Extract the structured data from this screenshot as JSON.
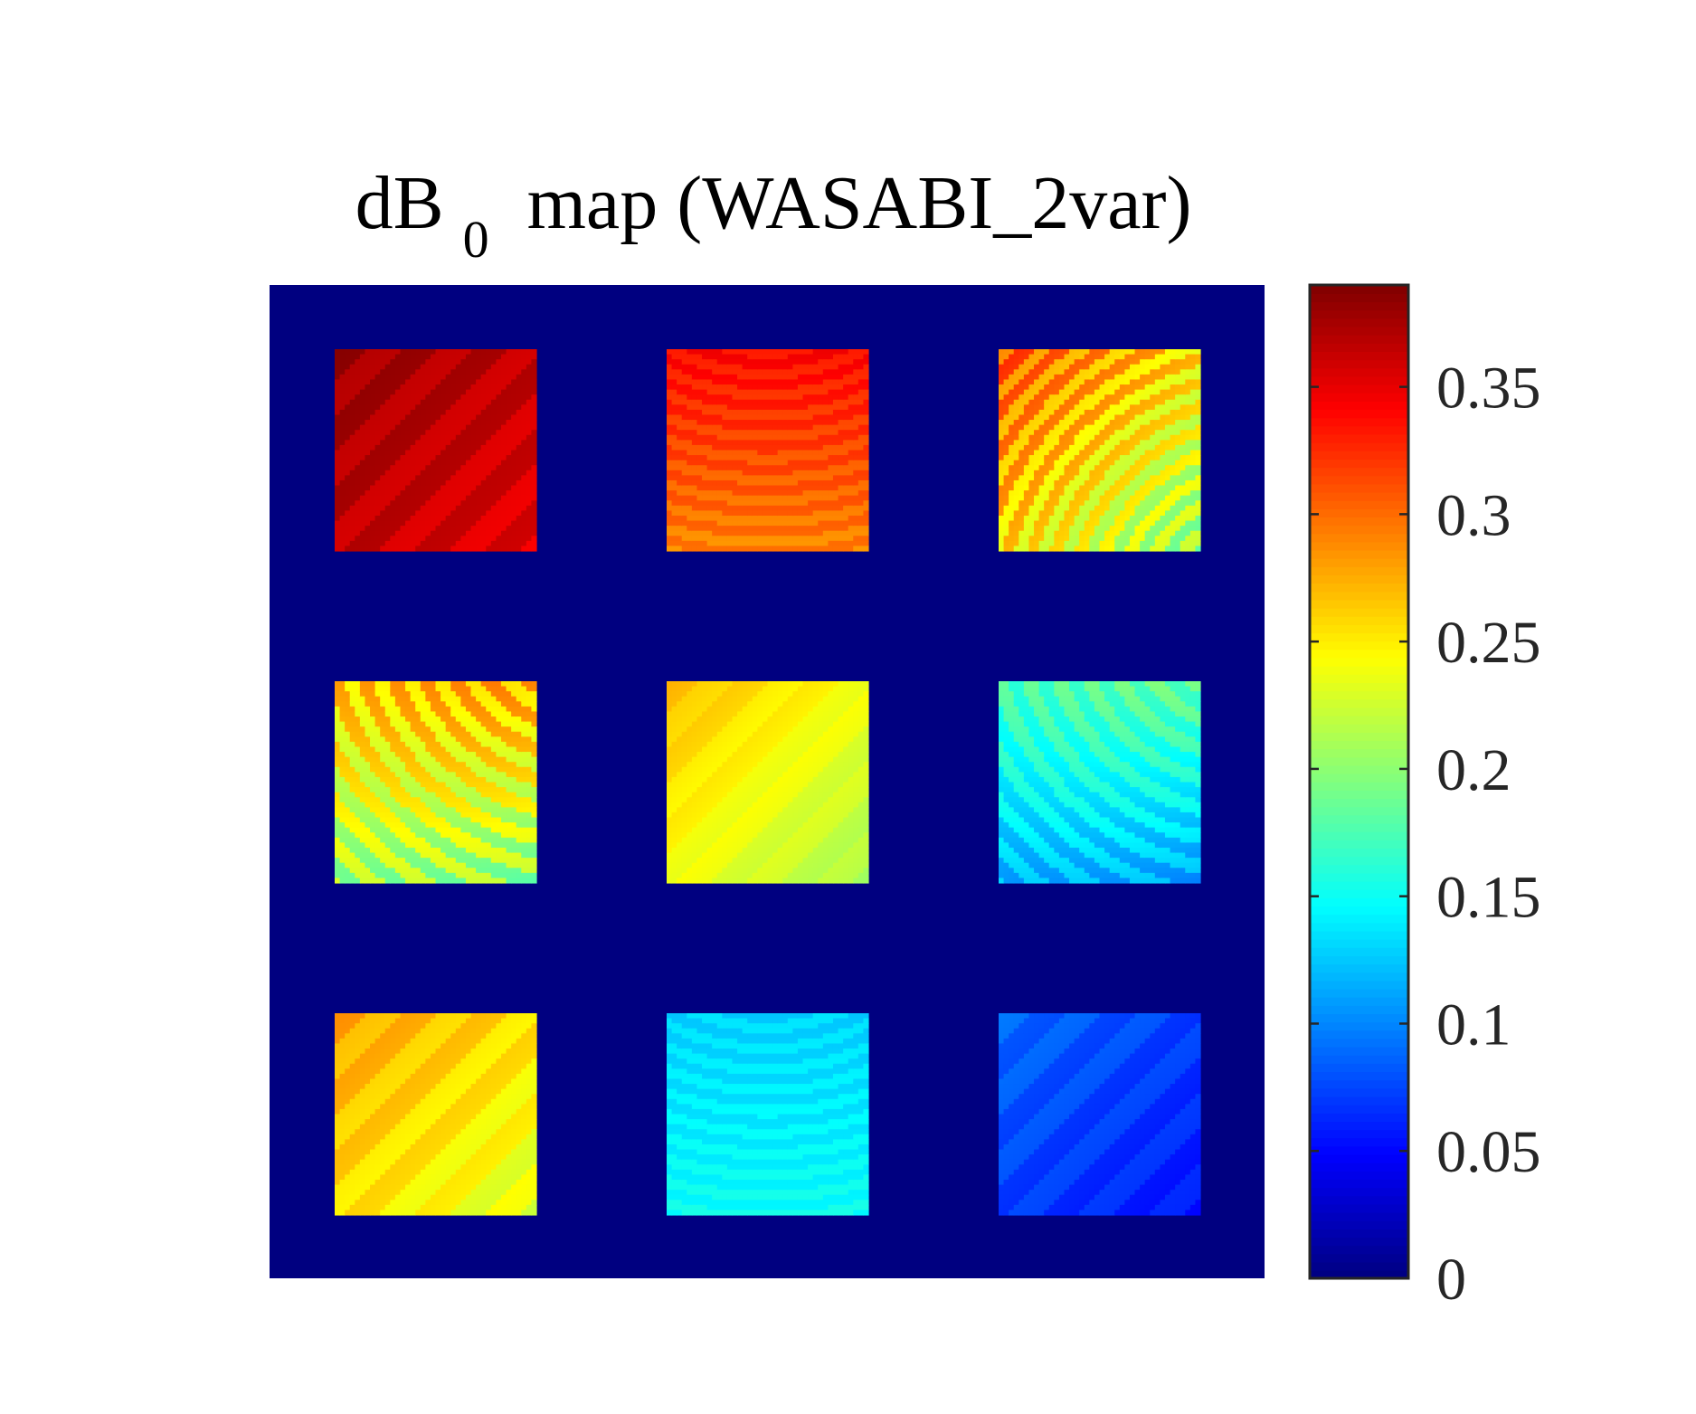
{
  "chart_data": {
    "type": "heatmap",
    "title": {
      "prefix": "dB",
      "subscript": "0",
      "suffix": " map (WASABI_2var)"
    },
    "background_value": 0,
    "grid": {
      "rows": 3,
      "cols": 3
    },
    "tiles": [
      {
        "row": 0,
        "col": 0,
        "pattern": "diagonal",
        "top_left": 0.38,
        "bottom_right": 0.35,
        "ripple": 0.008
      },
      {
        "row": 0,
        "col": 1,
        "pattern": "vertical",
        "top_left": 0.34,
        "bottom_right": 0.29,
        "ripple": 0.008
      },
      {
        "row": 0,
        "col": 2,
        "pattern": "diagonal-rings",
        "top_left": 0.31,
        "bottom_right": 0.2,
        "ripple": 0.02
      },
      {
        "row": 1,
        "col": 0,
        "pattern": "rings",
        "top_left": 0.3,
        "bottom_right": 0.18,
        "ripple": 0.02
      },
      {
        "row": 1,
        "col": 1,
        "pattern": "diagonal",
        "top_left": 0.27,
        "bottom_right": 0.21,
        "ripple": 0.004
      },
      {
        "row": 1,
        "col": 2,
        "pattern": "rings",
        "top_left": 0.21,
        "bottom_right": 0.09,
        "ripple": 0.012
      },
      {
        "row": 2,
        "col": 0,
        "pattern": "diagonal",
        "top_left": 0.28,
        "bottom_right": 0.23,
        "ripple": 0.008
      },
      {
        "row": 2,
        "col": 1,
        "pattern": "vertical",
        "top_left": 0.13,
        "bottom_right": 0.15,
        "ripple": 0.006
      },
      {
        "row": 2,
        "col": 2,
        "pattern": "diagonal",
        "top_left": 0.09,
        "bottom_right": 0.055,
        "ripple": 0.006
      }
    ],
    "colorbar": {
      "colormap": "jet",
      "range": [
        0,
        0.39
      ],
      "ticks": [
        0,
        0.05,
        0.1,
        0.15,
        0.2,
        0.25,
        0.3,
        0.35
      ],
      "tick_labels": [
        "0",
        "0.05",
        "0.1",
        "0.15",
        "0.2",
        "0.25",
        "0.3",
        "0.35"
      ]
    }
  }
}
